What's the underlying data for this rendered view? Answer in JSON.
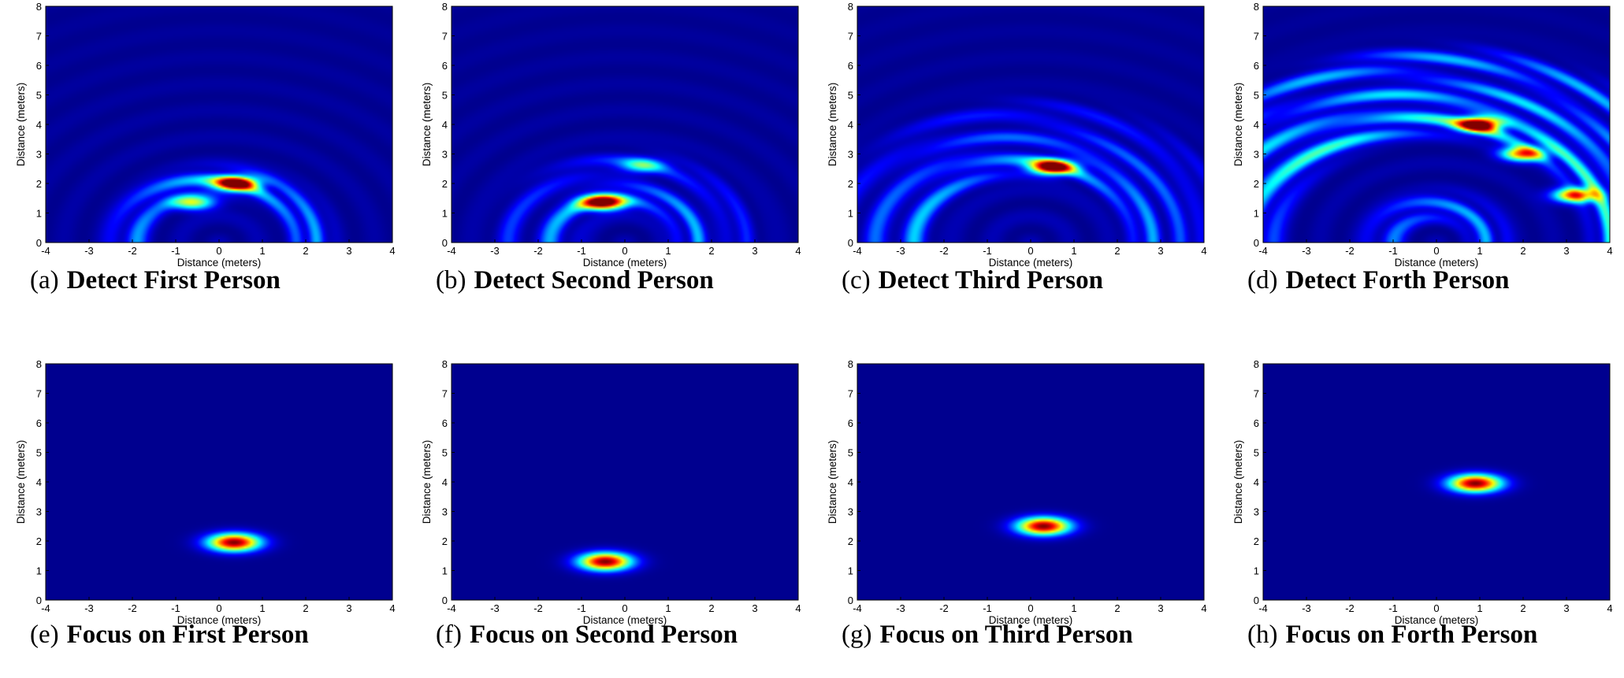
{
  "colormap": {
    "name": "jet",
    "stops": [
      "#00008f",
      "#0000ff",
      "#00ffff",
      "#ffff00",
      "#ff0000",
      "#800000"
    ],
    "background": "#00008f"
  },
  "chart_data": [
    {
      "type": "heatmap",
      "id": "a",
      "caption_letter": "(a)",
      "caption_text": "Detect First Person",
      "xlabel": "Distance (meters)",
      "ylabel": "Distance (meters)",
      "xlim": [
        -4,
        4
      ],
      "ylim": [
        0,
        8
      ],
      "xticks": [
        -4,
        -3,
        -2,
        -1,
        0,
        1,
        2,
        3,
        4
      ],
      "yticks": [
        0,
        1,
        2,
        3,
        4,
        5,
        6,
        7,
        8
      ],
      "grid": false,
      "legend": "none",
      "colormap": "jet",
      "variant": "detect",
      "peaks": [
        {
          "x": 0.4,
          "y": 2.0,
          "intensity": 1.0
        },
        {
          "x": -0.6,
          "y": 1.35,
          "intensity": 0.55
        }
      ],
      "arcs": [
        {
          "cx": 0.0,
          "cy": 0.0,
          "r": 2.1,
          "intensity": 0.35
        }
      ]
    },
    {
      "type": "heatmap",
      "id": "b",
      "caption_letter": "(b)",
      "caption_text": "Detect Second Person",
      "xlabel": "Distance (meters)",
      "ylabel": "Distance (meters)",
      "xlim": [
        -4,
        4
      ],
      "ylim": [
        0,
        8
      ],
      "xticks": [
        -4,
        -3,
        -2,
        -1,
        0,
        1,
        2,
        3,
        4
      ],
      "yticks": [
        0,
        1,
        2,
        3,
        4,
        5,
        6,
        7,
        8
      ],
      "grid": false,
      "legend": "none",
      "colormap": "jet",
      "variant": "detect",
      "peaks": [
        {
          "x": -0.5,
          "y": 1.35,
          "intensity": 1.0
        },
        {
          "x": 0.4,
          "y": 2.6,
          "intensity": 0.35
        }
      ],
      "arcs": [
        {
          "cx": 0.0,
          "cy": 0.0,
          "r": 1.6,
          "intensity": 0.3
        },
        {
          "cx": 0.0,
          "cy": 0.0,
          "r": 2.7,
          "intensity": 0.15
        }
      ]
    },
    {
      "type": "heatmap",
      "id": "c",
      "caption_letter": "(c)",
      "caption_text": "Detect Third Person",
      "xlabel": "Distance (meters)",
      "ylabel": "Distance (meters)",
      "xlim": [
        -4,
        4
      ],
      "ylim": [
        0,
        8
      ],
      "xticks": [
        -4,
        -3,
        -2,
        -1,
        0,
        1,
        2,
        3,
        4
      ],
      "yticks": [
        0,
        1,
        2,
        3,
        4,
        5,
        6,
        7,
        8
      ],
      "grid": false,
      "legend": "none",
      "colormap": "jet",
      "variant": "detect",
      "peaks": [
        {
          "x": 0.5,
          "y": 2.55,
          "intensity": 1.0
        }
      ],
      "arcs": [
        {
          "cx": 0.0,
          "cy": 0.0,
          "r": 2.7,
          "intensity": 0.3
        },
        {
          "cx": 0.0,
          "cy": 0.0,
          "r": 3.6,
          "intensity": 0.2
        },
        {
          "cx": 0.0,
          "cy": 0.0,
          "r": 4.5,
          "intensity": 0.12
        }
      ]
    },
    {
      "type": "heatmap",
      "id": "d",
      "caption_letter": "(d)",
      "caption_text": "Detect Forth Person",
      "xlabel": "Distance (meters)",
      "ylabel": "Distance (meters)",
      "xlim": [
        -4,
        4
      ],
      "ylim": [
        0,
        8
      ],
      "xticks": [
        -4,
        -3,
        -2,
        -1,
        0,
        1,
        2,
        3,
        4
      ],
      "yticks": [
        0,
        1,
        2,
        3,
        4,
        5,
        6,
        7,
        8
      ],
      "grid": false,
      "legend": "none",
      "colormap": "jet",
      "variant": "detect",
      "peaks": [
        {
          "x": 1.0,
          "y": 4.0,
          "intensity": 1.0
        },
        {
          "x": 2.0,
          "y": 3.0,
          "intensity": 0.75
        },
        {
          "x": 3.2,
          "y": 1.6,
          "intensity": 0.8
        }
      ],
      "arcs": [
        {
          "cx": 0.0,
          "cy": 0.0,
          "r": 4.1,
          "intensity": 0.45
        },
        {
          "cx": 0.0,
          "cy": 0.0,
          "r": 5.1,
          "intensity": 0.35
        },
        {
          "cx": 0.0,
          "cy": 0.0,
          "r": 6.2,
          "intensity": 0.3
        },
        {
          "cx": 0.0,
          "cy": 0.0,
          "r": 1.2,
          "intensity": 0.3
        }
      ]
    },
    {
      "type": "heatmap",
      "id": "e",
      "caption_letter": "(e)",
      "caption_text": "Focus on First Person",
      "xlabel": "Distance (meters)",
      "ylabel": "Distance (meters)",
      "xlim": [
        -4,
        4
      ],
      "ylim": [
        0,
        8
      ],
      "xticks": [
        -4,
        -3,
        -2,
        -1,
        0,
        1,
        2,
        3,
        4
      ],
      "yticks": [
        0,
        1,
        2,
        3,
        4,
        5,
        6,
        7,
        8
      ],
      "grid": false,
      "legend": "none",
      "colormap": "jet",
      "variant": "focus",
      "peaks": [
        {
          "x": 0.35,
          "y": 1.95,
          "intensity": 1.0
        }
      ],
      "arcs": []
    },
    {
      "type": "heatmap",
      "id": "f",
      "caption_letter": "(f)",
      "caption_text": "Focus on Second Person",
      "xlabel": "Distance (meters)",
      "ylabel": "Distance (meters)",
      "xlim": [
        -4,
        4
      ],
      "ylim": [
        0,
        8
      ],
      "xticks": [
        -4,
        -3,
        -2,
        -1,
        0,
        1,
        2,
        3,
        4
      ],
      "yticks": [
        0,
        1,
        2,
        3,
        4,
        5,
        6,
        7,
        8
      ],
      "grid": false,
      "legend": "none",
      "colormap": "jet",
      "variant": "focus",
      "peaks": [
        {
          "x": -0.45,
          "y": 1.3,
          "intensity": 1.0
        }
      ],
      "arcs": []
    },
    {
      "type": "heatmap",
      "id": "g",
      "caption_letter": "(g)",
      "caption_text": "Focus on Third Person",
      "xlabel": "Distance (meters)",
      "ylabel": "Distance (meters)",
      "xlim": [
        -4,
        4
      ],
      "ylim": [
        0,
        8
      ],
      "xticks": [
        -4,
        -3,
        -2,
        -1,
        0,
        1,
        2,
        3,
        4
      ],
      "yticks": [
        0,
        1,
        2,
        3,
        4,
        5,
        6,
        7,
        8
      ],
      "grid": false,
      "legend": "none",
      "colormap": "jet",
      "variant": "focus",
      "peaks": [
        {
          "x": 0.3,
          "y": 2.5,
          "intensity": 1.0
        }
      ],
      "arcs": []
    },
    {
      "type": "heatmap",
      "id": "h",
      "caption_letter": "(h)",
      "caption_text": "Focus on Forth Person",
      "xlabel": "Distance (meters)",
      "ylabel": "Distance (meters)",
      "xlim": [
        -4,
        4
      ],
      "ylim": [
        0,
        8
      ],
      "xticks": [
        -4,
        -3,
        -2,
        -1,
        0,
        1,
        2,
        3,
        4
      ],
      "yticks": [
        0,
        1,
        2,
        3,
        4,
        5,
        6,
        7,
        8
      ],
      "grid": false,
      "legend": "none",
      "colormap": "jet",
      "variant": "focus",
      "peaks": [
        {
          "x": 0.9,
          "y": 3.95,
          "intensity": 1.0
        }
      ],
      "arcs": []
    }
  ]
}
